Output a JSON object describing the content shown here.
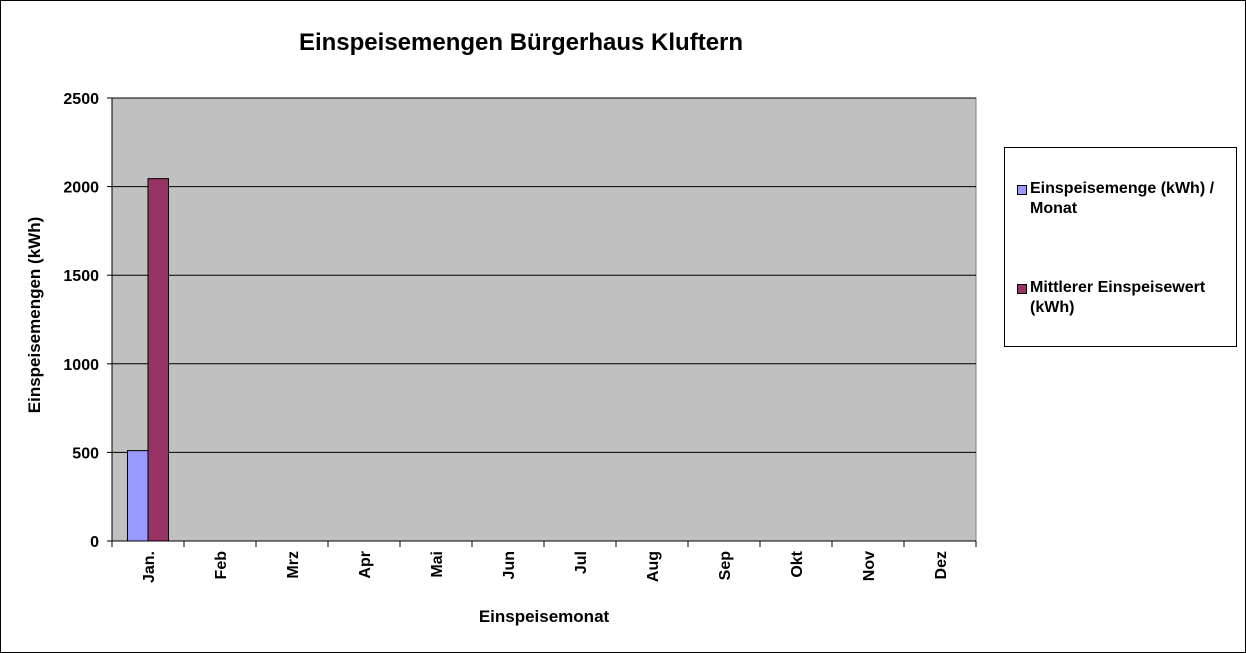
{
  "chart_data": {
    "type": "bar",
    "title": "Einspeisemengen Bürgerhaus Kluftern",
    "xlabel": "Einspeisemonat",
    "ylabel": "Einspeisemengen (kWh)",
    "ylim": [
      0,
      2500
    ],
    "yticks": [
      "0",
      "500",
      "1000",
      "1500",
      "2000",
      "2500"
    ],
    "grid": true,
    "legend_position": "right",
    "plot_background": "#C0C0C0",
    "categories": [
      "Jan.",
      "Feb",
      "Mrz",
      "Apr",
      "Mai",
      "Jun",
      "Jul",
      "Aug",
      "Sep",
      "Okt",
      "Nov",
      "Dez"
    ],
    "series": [
      {
        "name": "Einspeisemenge (kWh) / Monat",
        "color": "#9999FF",
        "values": [
          510,
          null,
          null,
          null,
          null,
          null,
          null,
          null,
          null,
          null,
          null,
          null
        ]
      },
      {
        "name": "Mittlerer Einspeisewert (kWh)",
        "color": "#993366",
        "values": [
          2045,
          null,
          null,
          null,
          null,
          null,
          null,
          null,
          null,
          null,
          null,
          null
        ]
      }
    ]
  }
}
